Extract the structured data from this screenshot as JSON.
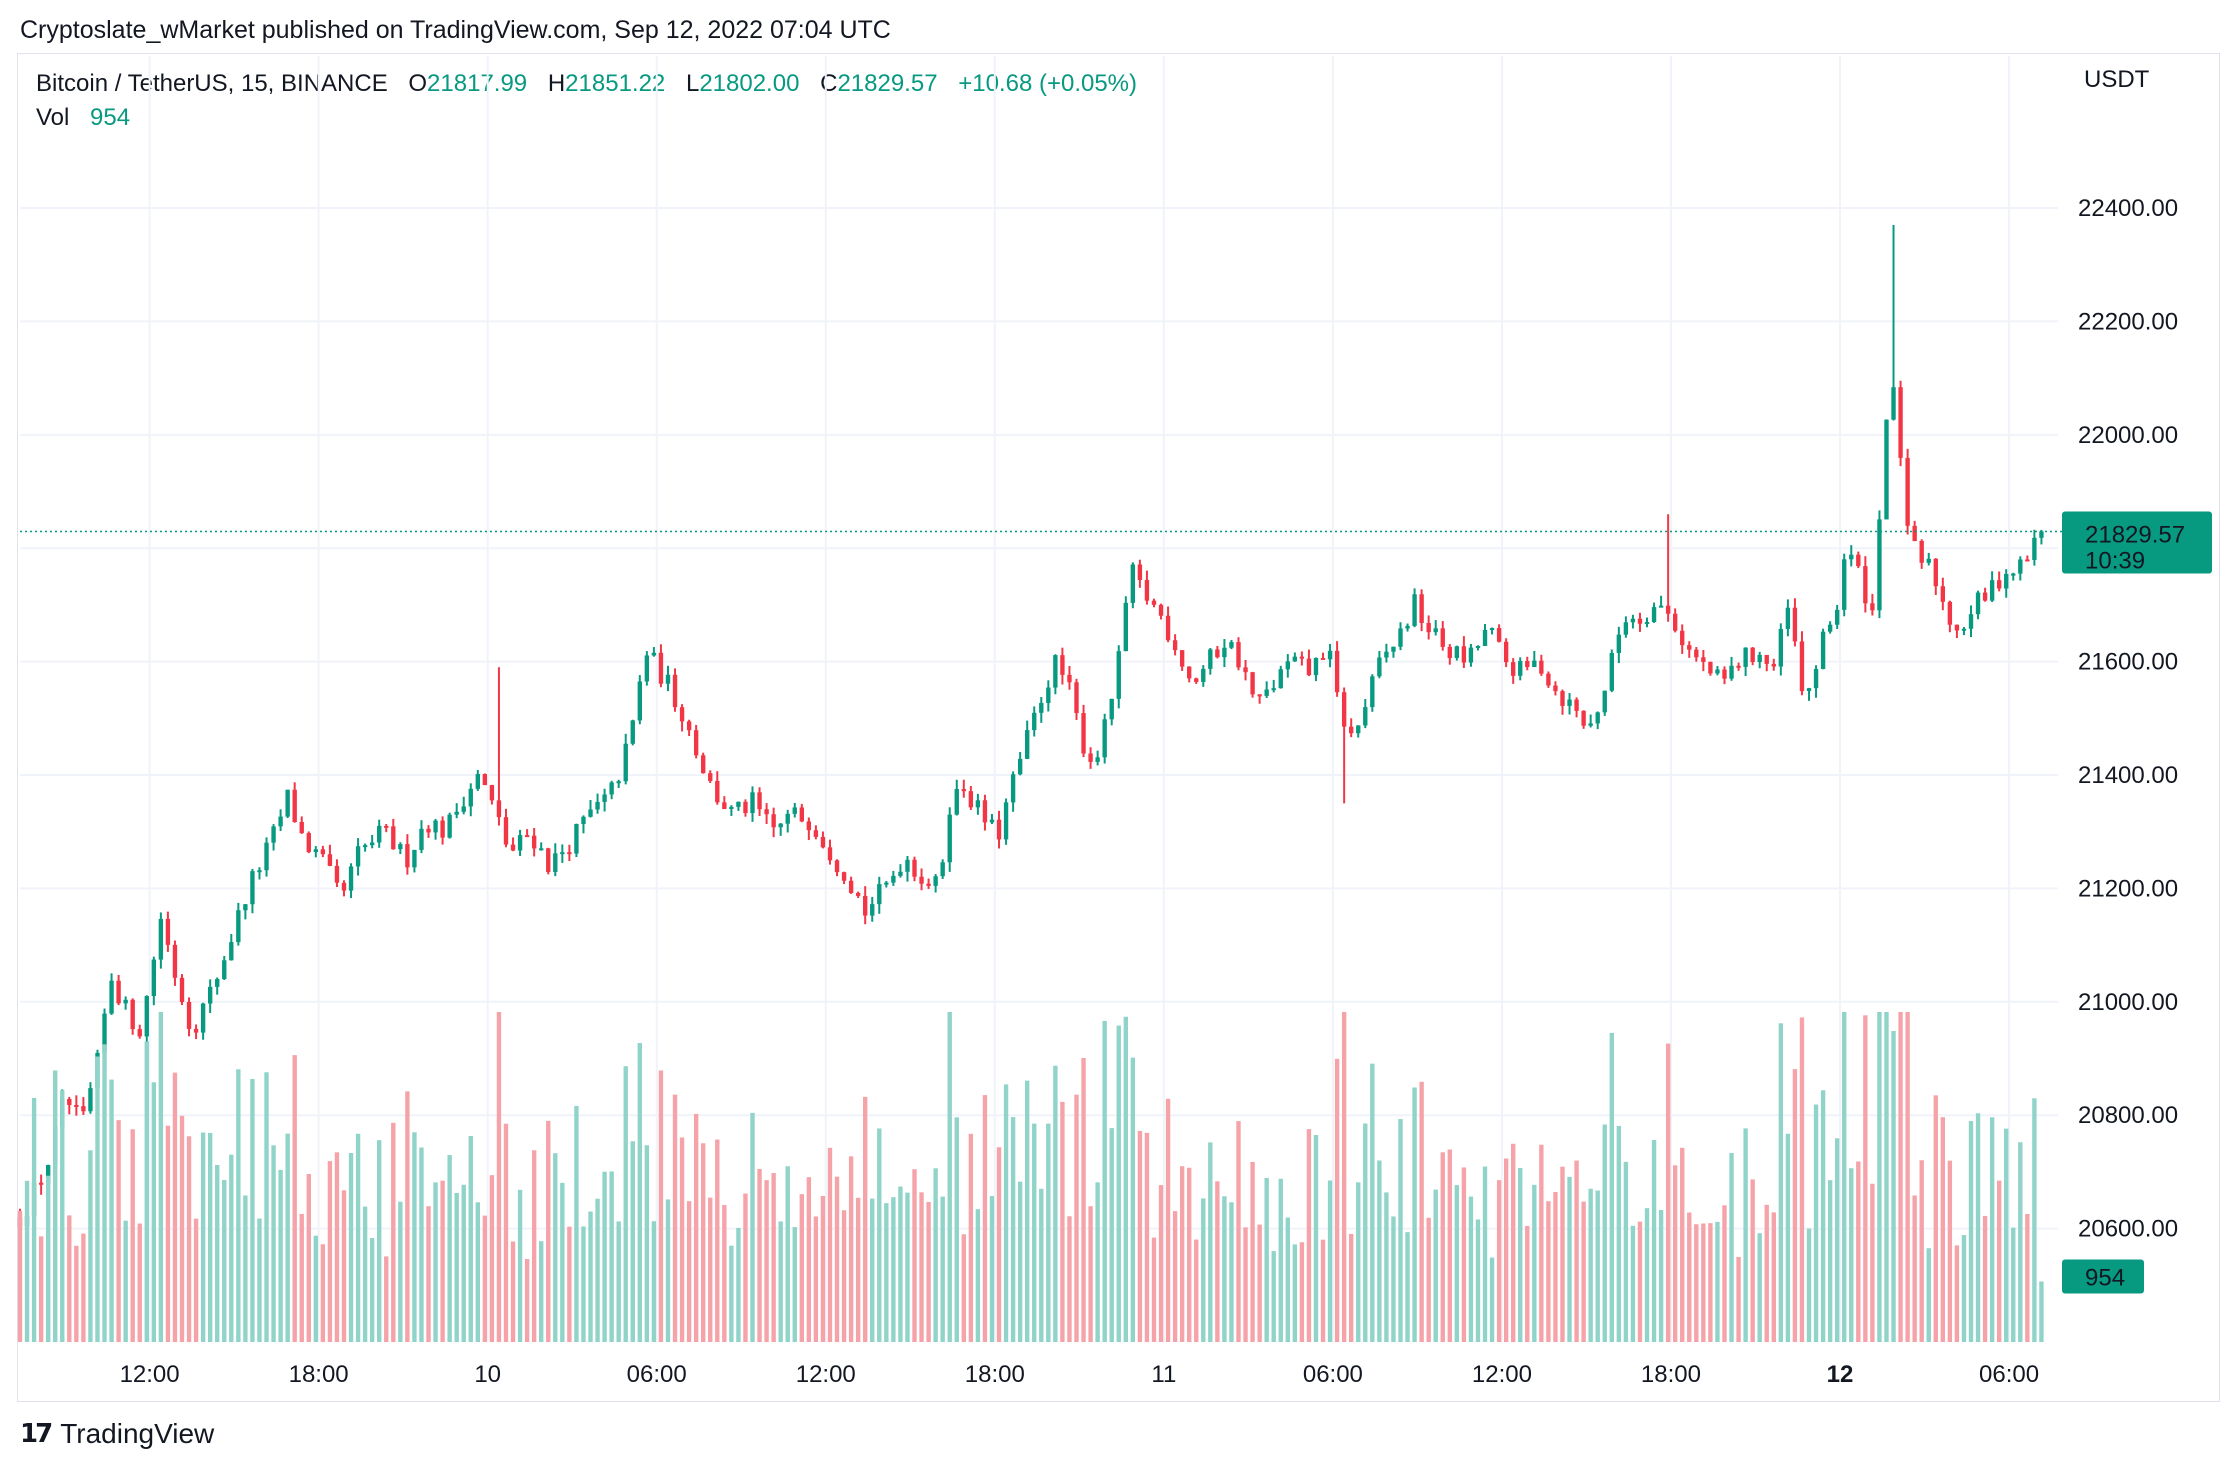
{
  "publisher_line": "Cryptoslate_wMarket published on TradingView.com, Sep 12, 2022 07:04 UTC",
  "legend": {
    "title": "Bitcoin / TetherUS, 15, BINANCE",
    "open_key": "O",
    "open": "21817.99",
    "high_key": "H",
    "high": "21851.22",
    "low_key": "L",
    "low": "21802.00",
    "close_key": "C",
    "close": "21829.57",
    "change": "+10.68 (+0.05%)",
    "vol_label": "Vol",
    "vol_value": "954"
  },
  "currency": "USDT",
  "brand": {
    "logo": "17",
    "name": "TradingView"
  },
  "colors": {
    "up": "#089981",
    "down": "#f23645",
    "vol_up": "#8fd3c9",
    "vol_down": "#f5a3a8",
    "grid": "#f0f3fa"
  },
  "chart_data": {
    "type": "candlestick",
    "interval": "15",
    "price_axis": {
      "ylim": [
        20400,
        22520
      ],
      "ticks": [
        20600,
        20800,
        21000,
        21200,
        21400,
        21600,
        21800,
        22000,
        22200,
        22400
      ],
      "tick_labels": [
        "20600.00",
        "20800.00",
        "21000.00",
        "21200.00",
        "21400.00",
        "21600.00",
        "21800.00",
        "22000.00",
        "22200.00",
        "22400.00"
      ]
    },
    "time_axis": {
      "labels": [
        "12:00",
        "18:00",
        "10",
        "06:00",
        "12:00",
        "18:00",
        "11",
        "06:00",
        "12:00",
        "18:00",
        "12",
        "06:00"
      ],
      "label_hours": [
        12,
        18,
        24,
        30,
        36,
        42,
        48,
        54,
        60,
        66,
        72,
        78
      ],
      "bold_labels": [
        "12"
      ],
      "start_hour": 7.4,
      "end_hour": 79.17
    },
    "last_price": {
      "value": 21829.57,
      "label": "21829.57",
      "countdown": "10:39"
    },
    "last_volume": {
      "value": 954,
      "label": "954"
    },
    "volume_max": 5200,
    "anchors": [
      [
        7.4,
        20620
      ],
      [
        8.3,
        20700
      ],
      [
        9.0,
        20830
      ],
      [
        9.6,
        20780
      ],
      [
        10.2,
        20900
      ],
      [
        10.6,
        21050
      ],
      [
        11.2,
        20980
      ],
      [
        11.7,
        20950
      ],
      [
        12.4,
        21150
      ],
      [
        12.9,
        21050
      ],
      [
        13.5,
        20950
      ],
      [
        14.2,
        21020
      ],
      [
        14.8,
        21100
      ],
      [
        15.5,
        21200
      ],
      [
        16.3,
        21280
      ],
      [
        16.9,
        21360
      ],
      [
        17.5,
        21280
      ],
      [
        18.1,
        21250
      ],
      [
        18.8,
        21180
      ],
      [
        19.4,
        21260
      ],
      [
        20.3,
        21300
      ],
      [
        21.1,
        21250
      ],
      [
        21.8,
        21320
      ],
      [
        22.5,
        21300
      ],
      [
        23.1,
        21360
      ],
      [
        23.7,
        21400
      ],
      [
        24.3,
        21330
      ],
      [
        24.8,
        21260
      ],
      [
        25.5,
        21300
      ],
      [
        26.2,
        21240
      ],
      [
        26.9,
        21280
      ],
      [
        27.6,
        21330
      ],
      [
        28.3,
        21360
      ],
      [
        28.8,
        21420
      ],
      [
        29.2,
        21500
      ],
      [
        29.6,
        21620
      ],
      [
        30.4,
        21560
      ],
      [
        31.0,
        21500
      ],
      [
        31.6,
        21420
      ],
      [
        32.0,
        21370
      ],
      [
        32.7,
        21330
      ],
      [
        33.4,
        21350
      ],
      [
        34.1,
        21300
      ],
      [
        34.8,
        21330
      ],
      [
        35.5,
        21320
      ],
      [
        36.1,
        21270
      ],
      [
        36.8,
        21220
      ],
      [
        37.4,
        21160
      ],
      [
        38.1,
        21200
      ],
      [
        38.8,
        21260
      ],
      [
        39.4,
        21220
      ],
      [
        40.0,
        21200
      ],
      [
        40.4,
        21350
      ],
      [
        40.9,
        21380
      ],
      [
        41.5,
        21330
      ],
      [
        42.1,
        21290
      ],
      [
        42.6,
        21380
      ],
      [
        43.2,
        21470
      ],
      [
        43.8,
        21560
      ],
      [
        44.2,
        21600
      ],
      [
        44.7,
        21540
      ],
      [
        45.1,
        21460
      ],
      [
        45.5,
        21420
      ],
      [
        45.9,
        21480
      ],
      [
        46.4,
        21600
      ],
      [
        46.8,
        21760
      ],
      [
        47.3,
        21720
      ],
      [
        47.9,
        21680
      ],
      [
        48.5,
        21620
      ],
      [
        49.0,
        21560
      ],
      [
        49.6,
        21600
      ],
      [
        50.2,
        21640
      ],
      [
        50.7,
        21600
      ],
      [
        51.3,
        21520
      ],
      [
        51.9,
        21560
      ],
      [
        52.5,
        21600
      ],
      [
        53.2,
        21580
      ],
      [
        53.8,
        21630
      ],
      [
        54.2,
        21520
      ],
      [
        54.7,
        21460
      ],
      [
        55.2,
        21530
      ],
      [
        55.7,
        21600
      ],
      [
        56.3,
        21640
      ],
      [
        56.9,
        21700
      ],
      [
        57.5,
        21650
      ],
      [
        58.1,
        21620
      ],
      [
        58.8,
        21600
      ],
      [
        59.5,
        21660
      ],
      [
        60.1,
        21600
      ],
      [
        60.7,
        21580
      ],
      [
        61.3,
        21600
      ],
      [
        61.9,
        21550
      ],
      [
        62.5,
        21520
      ],
      [
        63.1,
        21480
      ],
      [
        63.7,
        21560
      ],
      [
        64.3,
        21680
      ],
      [
        64.9,
        21680
      ],
      [
        65.5,
        21700
      ],
      [
        66.0,
        21680
      ],
      [
        66.6,
        21620
      ],
      [
        67.2,
        21590
      ],
      [
        67.8,
        21560
      ],
      [
        68.4,
        21600
      ],
      [
        69.1,
        21620
      ],
      [
        69.6,
        21580
      ],
      [
        70.2,
        21700
      ],
      [
        70.7,
        21520
      ],
      [
        71.3,
        21620
      ],
      [
        71.9,
        21700
      ],
      [
        72.2,
        21800
      ],
      [
        72.7,
        21750
      ],
      [
        73.2,
        21680
      ],
      [
        73.5,
        21960
      ],
      [
        73.8,
        22100
      ],
      [
        74.1,
        22000
      ],
      [
        74.4,
        21820
      ],
      [
        74.8,
        21780
      ],
      [
        75.3,
        21760
      ],
      [
        75.8,
        21680
      ],
      [
        76.3,
        21660
      ],
      [
        76.8,
        21700
      ],
      [
        77.3,
        21720
      ],
      [
        77.8,
        21760
      ],
      [
        78.3,
        21760
      ],
      [
        78.7,
        21790
      ],
      [
        79.17,
        21830
      ]
    ]
  }
}
